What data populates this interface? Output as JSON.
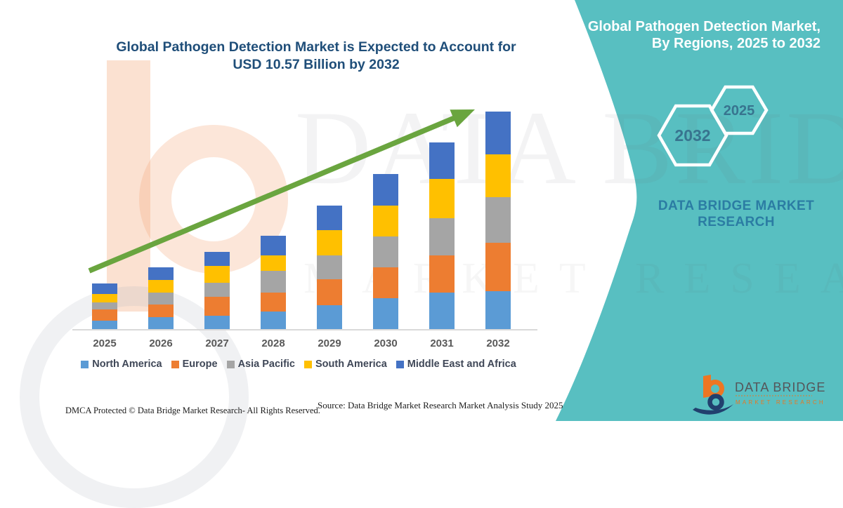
{
  "chart": {
    "title_line1": "Global Pathogen Detection Market is Expected to Account for",
    "title_line2": "USD 10.57 Billion by 2032",
    "footer_left": "DMCA Protected © Data Bridge Market Research-  All Rights Reserved.",
    "footer_source": "Source: Data Bridge Market Research  Market Analysis Study 2025"
  },
  "chart_data": {
    "type": "bar",
    "stacked": true,
    "title": "Global Pathogen Detection Market is Expected to Account for USD 10.57 Billion by 2032",
    "unit": "USD Billion",
    "categories": [
      "2025",
      "2026",
      "2027",
      "2028",
      "2029",
      "2030",
      "2031",
      "2032"
    ],
    "series": [
      {
        "name": "North America",
        "color": "#5B9BD5",
        "values": [
          0.45,
          0.6,
          0.68,
          0.87,
          1.19,
          1.53,
          1.8,
          1.88
        ]
      },
      {
        "name": "Europe",
        "color": "#ED7D31",
        "values": [
          0.54,
          0.61,
          0.91,
          0.92,
          1.25,
          1.5,
          1.8,
          2.32
        ]
      },
      {
        "name": "Asia Pacific",
        "color": "#A5A5A5",
        "values": [
          0.34,
          0.6,
          0.68,
          1.06,
          1.17,
          1.49,
          1.8,
          2.21
        ]
      },
      {
        "name": "South America",
        "color": "#FFC000",
        "values": [
          0.42,
          0.6,
          0.83,
          0.75,
          1.21,
          1.5,
          1.9,
          2.1
        ]
      },
      {
        "name": "Middle East and Africa",
        "color": "#4472C4",
        "values": [
          0.51,
          0.61,
          0.68,
          0.95,
          1.21,
          1.53,
          1.77,
          2.06
        ]
      }
    ],
    "totals": [
      2.26,
      3.02,
      3.78,
      4.55,
      6.03,
      7.55,
      9.07,
      10.57
    ],
    "ylim": [
      0,
      10.57
    ],
    "grid": false,
    "legend_position": "bottom",
    "annotations": {
      "trend_arrow": true,
      "arrow_color": "#6AA53F"
    }
  },
  "side_panel": {
    "background": "#58BFC1",
    "title_line1": "Global Pathogen Detection Market,",
    "title_line2": "By Regions, 2025 to 2032",
    "hexagons": [
      {
        "label": "2032"
      },
      {
        "label": "2025"
      }
    ],
    "brand_line1": "DATA BRIDGE MARKET",
    "brand_line2": "RESEARCH"
  },
  "logo": {
    "name": "DATA BRIDGE",
    "subtitle": "MARKET RESEARCH"
  },
  "watermark": {
    "line1": "DATA BRIDGE",
    "line2": "MARKET RESEARCH"
  }
}
